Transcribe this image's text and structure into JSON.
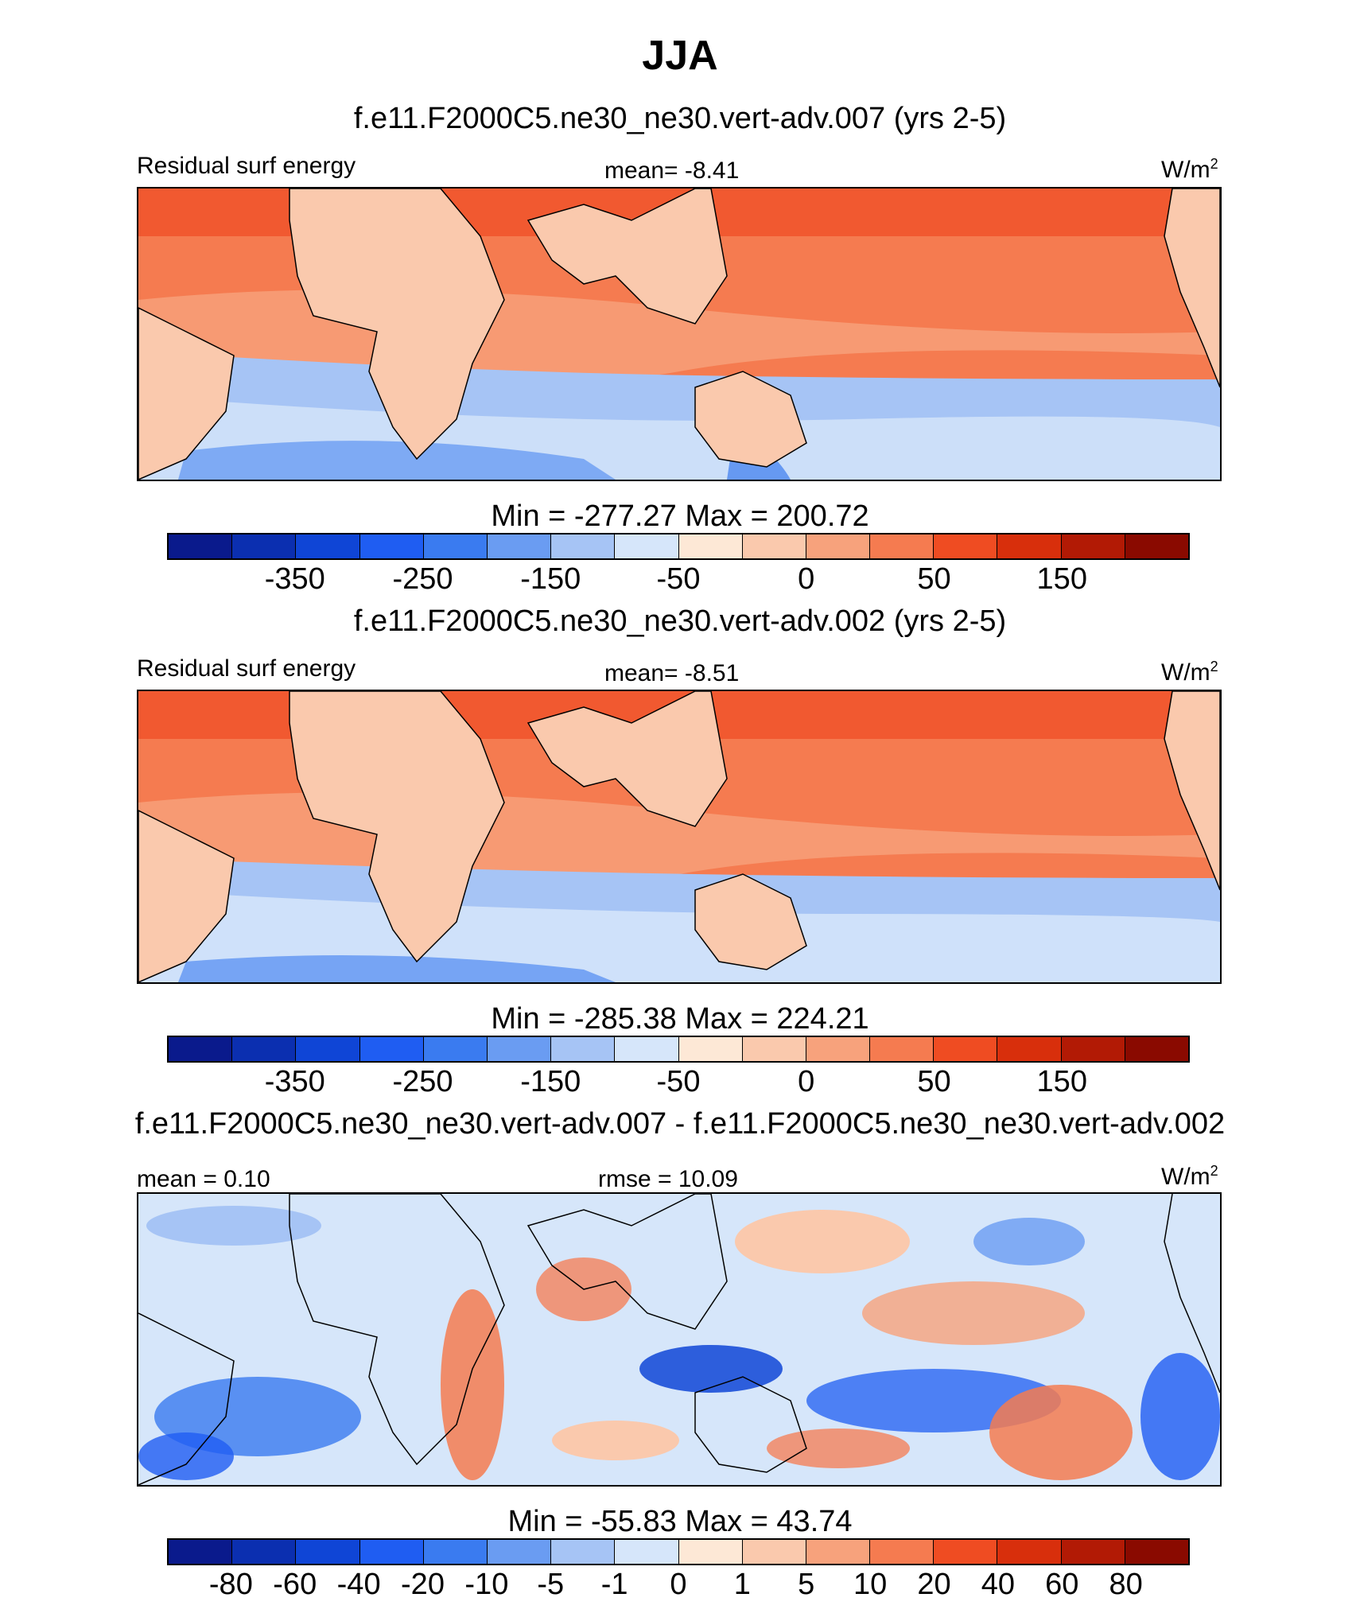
{
  "title": "JJA",
  "palette": [
    "#0a1a8c",
    "#0b2fb0",
    "#0f45d6",
    "#1f5df2",
    "#3a7bf0",
    "#6a9cf2",
    "#a6c4f5",
    "#d6e6fa",
    "#fde8d6",
    "#fac9ad",
    "#f7a27c",
    "#f57b50",
    "#ef4c22",
    "#d82f0c",
    "#b21a05",
    "#8a0a00"
  ],
  "land_color": "#fac9ad",
  "panels": [
    {
      "case_title": "f.e11.F2000C5.ne30_ne30.vert-adv.007 (yrs 2-5)",
      "left_label": "Residual surf energy",
      "center_label": "mean=  -8.41",
      "units": "W/m",
      "units_sup": "2",
      "minmax": "Min = -277.27 Max = 200.72",
      "colorbar_ticks": [
        "-350",
        "-250",
        "-150",
        "-50",
        "0",
        "50",
        "150"
      ]
    },
    {
      "case_title": "f.e11.F2000C5.ne30_ne30.vert-adv.002 (yrs 2-5)",
      "left_label": "Residual surf energy",
      "center_label": "mean=  -8.51",
      "units": "W/m",
      "units_sup": "2",
      "minmax": "Min = -285.38 Max = 224.21",
      "colorbar_ticks": [
        "-350",
        "-250",
        "-150",
        "-50",
        "0",
        "50",
        "150"
      ]
    },
    {
      "case_title": "f.e11.F2000C5.ne30_ne30.vert-adv.007 - f.e11.F2000C5.ne30_ne30.vert-adv.002",
      "left_label": "mean =   0.10",
      "center_label": "rmse =  10.09",
      "units": "W/m",
      "units_sup": "2",
      "minmax": "Min = -55.83 Max =  43.74",
      "colorbar_ticks": [
        "-80",
        "-60",
        "-40",
        "-20",
        "-10",
        "-5",
        "-1",
        "0",
        "1",
        "5",
        "10",
        "20",
        "40",
        "60",
        "80"
      ]
    }
  ],
  "chart_data": [
    {
      "type": "heatmap",
      "title": "JJA",
      "subtitle": "f.e11.F2000C5.ne30_ne30.vert-adv.007 (yrs 2-5)",
      "variable": "Residual surf energy",
      "units": "W/m2",
      "mean": -8.41,
      "min": -277.27,
      "max": 200.72,
      "colorbar_levels": [
        -350,
        -300,
        -250,
        -200,
        -150,
        -100,
        -50,
        -25,
        0,
        25,
        50,
        100,
        150,
        200,
        250
      ],
      "colorbar_labels": [
        "-350",
        "-250",
        "-150",
        "-50",
        "0",
        "50",
        "150"
      ]
    },
    {
      "type": "heatmap",
      "title": "JJA",
      "subtitle": "f.e11.F2000C5.ne30_ne30.vert-adv.002 (yrs 2-5)",
      "variable": "Residual surf energy",
      "units": "W/m2",
      "mean": -8.51,
      "min": -285.38,
      "max": 224.21,
      "colorbar_levels": [
        -350,
        -300,
        -250,
        -200,
        -150,
        -100,
        -50,
        -25,
        0,
        25,
        50,
        100,
        150,
        200,
        250
      ],
      "colorbar_labels": [
        "-350",
        "-250",
        "-150",
        "-50",
        "0",
        "50",
        "150"
      ]
    },
    {
      "type": "heatmap",
      "title": "JJA",
      "subtitle": "f.e11.F2000C5.ne30_ne30.vert-adv.007 - f.e11.F2000C5.ne30_ne30.vert-adv.002",
      "units": "W/m2",
      "mean": 0.1,
      "rmse": 10.09,
      "min": -55.83,
      "max": 43.74,
      "colorbar_levels": [
        -80,
        -60,
        -40,
        -20,
        -10,
        -5,
        -1,
        0,
        1,
        5,
        10,
        20,
        40,
        60,
        80
      ],
      "colorbar_labels": [
        "-80",
        "-60",
        "-40",
        "-20",
        "-10",
        "-5",
        "-1",
        "0",
        "1",
        "5",
        "10",
        "20",
        "40",
        "60",
        "80"
      ]
    }
  ]
}
